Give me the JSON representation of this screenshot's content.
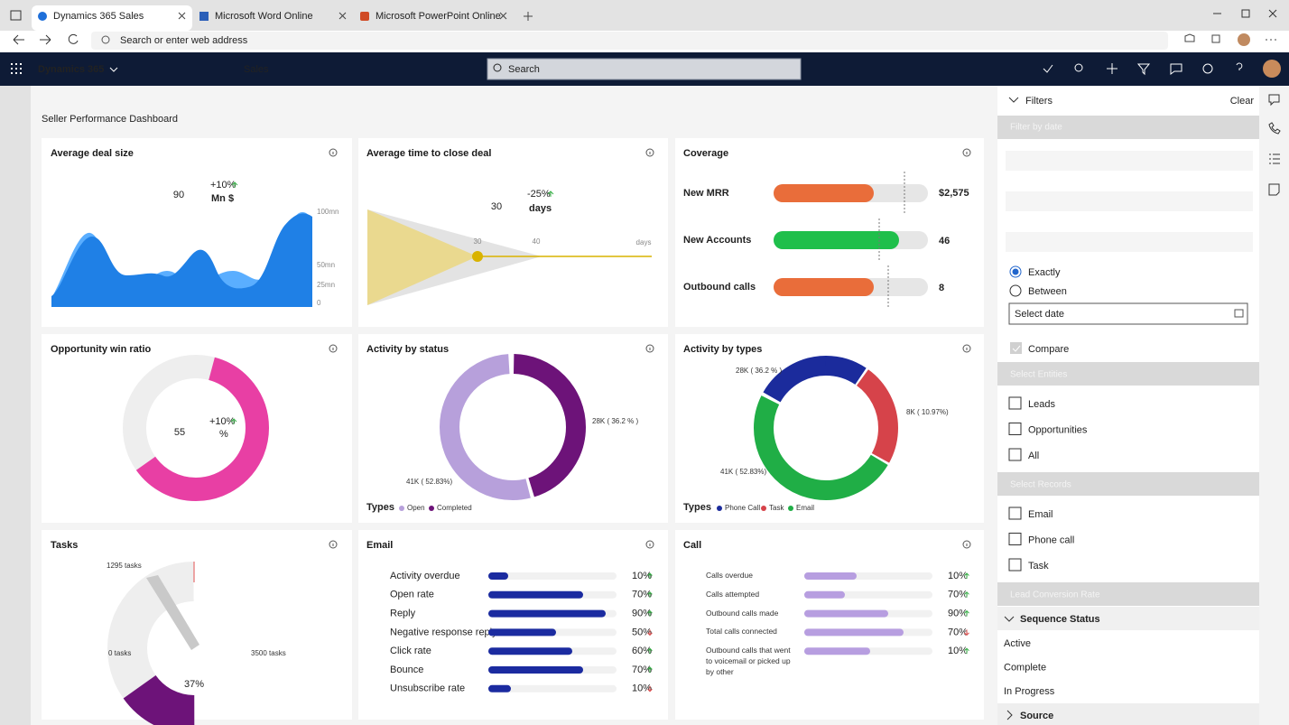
{
  "browser": {
    "tabs": [
      "Dynamics 365 Sales",
      "Microsoft Word Online",
      "Microsoft PowerPoint Online"
    ],
    "address_placeholder": "Search or enter web address"
  },
  "app": {
    "name": "Dynamics 365",
    "area": "Sales",
    "search": "Search"
  },
  "dashboard": {
    "title": "Seller Performance Dashboard",
    "cards": [
      {
        "title": "Average deal size",
        "value": "90",
        "change": "+10%",
        "unit": "Mn $",
        "axis_labels": [
          "100mn",
          "50mn",
          "25mn",
          "0"
        ]
      },
      {
        "title": "Average time to close deal",
        "value": "30",
        "change": "-25%",
        "unit": "days",
        "axis_labels": [
          "30",
          "40",
          "days"
        ]
      },
      {
        "title": "Coverage",
        "rows": [
          {
            "label": "New MRR",
            "value": "$2,575"
          },
          {
            "label": "New Accounts",
            "value": "46"
          },
          {
            "label": "Outbound calls",
            "value": "8"
          }
        ]
      },
      {
        "title": "Opportunity win ratio",
        "value": "55",
        "change": "+10%",
        "unit": "%"
      },
      {
        "title": "Activity by status",
        "labels": [
          "28K ( 36.2 % )",
          "41K ( 52.83%)"
        ],
        "legend_title": "Types",
        "legend": [
          "Open",
          "Completed"
        ]
      },
      {
        "title": "Activity by types",
        "labels": [
          "28K ( 36.2 % )",
          "8K ( 10.97%)",
          "41K ( 52.83%)"
        ],
        "legend_title": "Types",
        "legend": [
          "Phone Call",
          "Task",
          "Email"
        ]
      },
      {
        "title": "Tasks",
        "current": "1295 tasks",
        "min": "0 tasks",
        "max": "3500 tasks",
        "value": "37%"
      },
      {
        "title": "Email",
        "rows": [
          {
            "label": "Activity overdue",
            "value": "10%",
            "trend": "up"
          },
          {
            "label": "Open rate",
            "value": "70%",
            "trend": "up"
          },
          {
            "label": "Reply",
            "value": "90%",
            "trend": "up"
          },
          {
            "label": "Negative response reply",
            "value": "50%",
            "trend": "down"
          },
          {
            "label": "Click rate",
            "value": "60%",
            "trend": "up"
          },
          {
            "label": "Bounce",
            "value": "70%",
            "trend": "up"
          },
          {
            "label": "Unsubscribe rate",
            "value": "10%",
            "trend": "down"
          }
        ]
      },
      {
        "title": "Call",
        "rows": [
          {
            "label": "Calls overdue",
            "value": "10%",
            "trend": "up"
          },
          {
            "label": "Calls attempted",
            "value": "70%",
            "trend": "up"
          },
          {
            "label": "Outbound calls made",
            "value": "90%",
            "trend": "up"
          },
          {
            "label": "Total calls connected",
            "value": "70%",
            "trend": "down"
          },
          {
            "label": "Outbound calls that went to voicemail or picked up by other",
            "value": "10%",
            "trend": "up"
          }
        ]
      }
    ]
  },
  "filters": {
    "title": "Filters",
    "clear": "Clear",
    "date": {
      "header": "Filter by date",
      "options": [
        "Exactly",
        "Between"
      ],
      "placeholder": "Select date",
      "compare": "Compare"
    },
    "entities": {
      "header": "Select Entities",
      "items": [
        "Leads",
        "Opportunities",
        "All"
      ]
    },
    "records": {
      "header": "Select Records",
      "items": [
        "Email",
        "Phone call",
        "Task"
      ]
    },
    "lead_conversion": "Lead Conversion Rate",
    "sequence": {
      "header": "Sequence Status",
      "items": [
        "Active",
        "Complete",
        "In Progress"
      ]
    },
    "source": "Source"
  }
}
